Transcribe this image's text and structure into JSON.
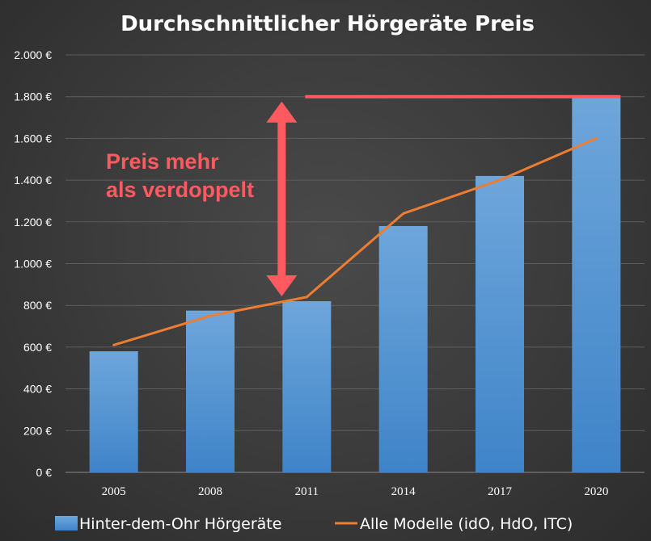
{
  "chart_data": {
    "type": "bar",
    "title": "Durchschnittlicher Hörgeräte Preis",
    "xlabel": "",
    "ylabel": "",
    "categories": [
      "2005",
      "2008",
      "2011",
      "2014",
      "2017",
      "2020"
    ],
    "ylim": [
      0,
      2000
    ],
    "yticks": [
      0,
      200,
      400,
      600,
      800,
      1000,
      1200,
      1400,
      1600,
      1800,
      2000
    ],
    "ytick_labels": [
      "0 €",
      "200 €",
      "400 €",
      "600 €",
      "800 €",
      "1.000 €",
      "1.200 €",
      "1.400 €",
      "1.600 €",
      "1.800 €",
      "2.000 €"
    ],
    "grid": true,
    "legend_position": "bottom",
    "series": [
      {
        "name": "Hinter-dem-Ohr Hörgeräte",
        "type": "bar",
        "color": "#5b9bd5",
        "values": [
          580,
          775,
          820,
          1180,
          1420,
          1795
        ]
      },
      {
        "name": "Alle Modelle (idO, HdO, ITC)",
        "type": "line",
        "color": "#ed7d31",
        "values": [
          610,
          750,
          840,
          1240,
          1400,
          1600
        ]
      }
    ],
    "annotations": {
      "text_line1": "Preis mehr",
      "text_line2": "als verdoppelt",
      "color": "#ff5a5f",
      "reference_line_value": 1800,
      "arrow_from_value": 820,
      "arrow_to_value": 1800
    }
  }
}
